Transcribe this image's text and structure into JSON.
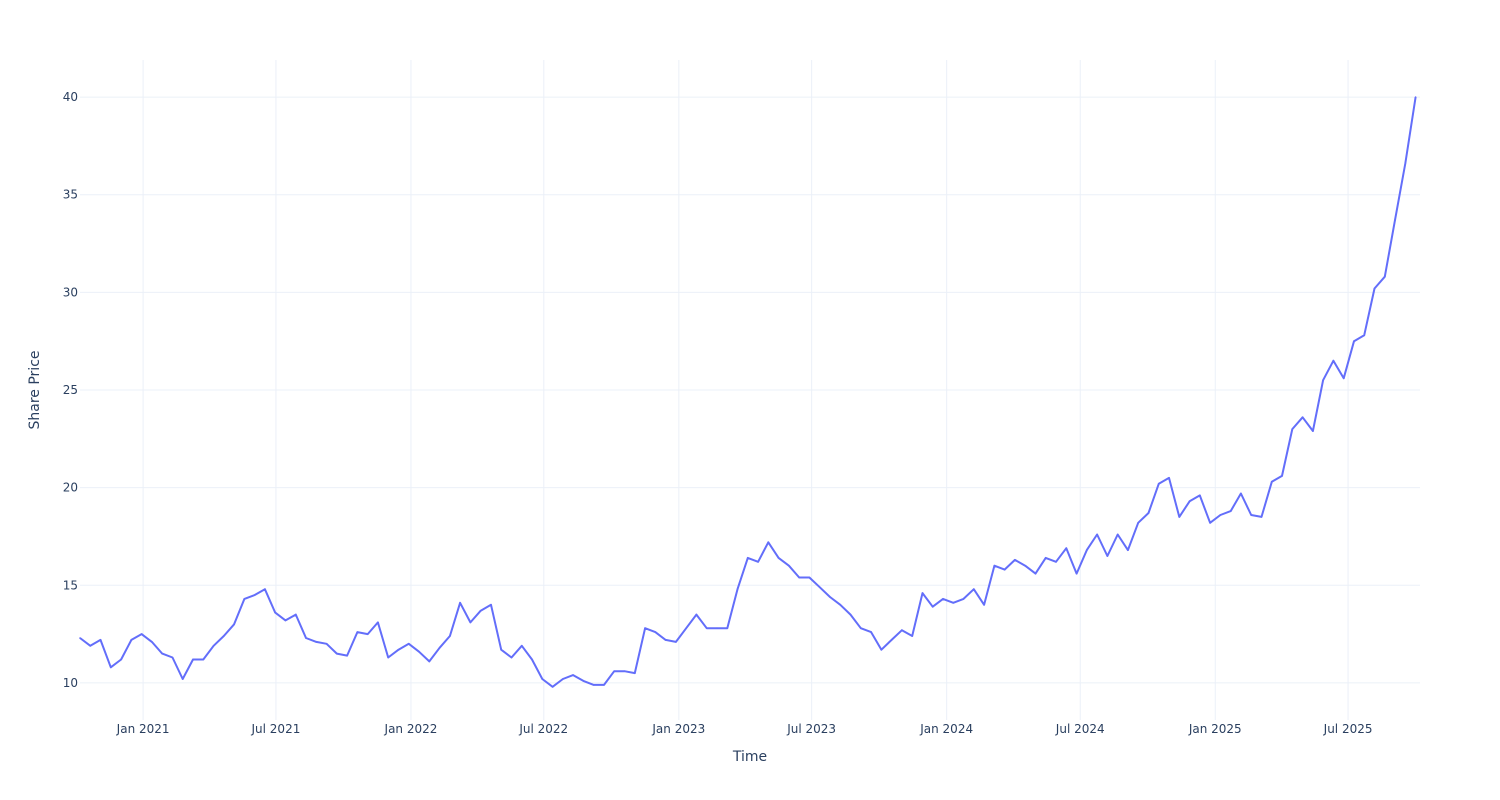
{
  "chart_data": {
    "type": "line",
    "title": "",
    "xlabel": "Time",
    "ylabel": "Share Price",
    "xlim": [
      "2020-10-07",
      "2025-10-07"
    ],
    "ylim": [
      8.1,
      41.9
    ],
    "grid": true,
    "legend": "none",
    "line_color": "#636efa",
    "grid_color": "#ebf0f8",
    "text_color": "#2a3f5f",
    "y_ticks": [
      10,
      15,
      20,
      25,
      30,
      35,
      40
    ],
    "x_ticks": [
      {
        "date": "2021-01-01",
        "label": "Jan 2021"
      },
      {
        "date": "2021-07-01",
        "label": "Jul 2021"
      },
      {
        "date": "2022-01-01",
        "label": "Jan 2022"
      },
      {
        "date": "2022-07-01",
        "label": "Jul 2022"
      },
      {
        "date": "2023-01-01",
        "label": "Jan 2023"
      },
      {
        "date": "2023-07-01",
        "label": "Jul 2023"
      },
      {
        "date": "2024-01-01",
        "label": "Jan 2024"
      },
      {
        "date": "2024-07-01",
        "label": "Jul 2024"
      },
      {
        "date": "2025-01-01",
        "label": "Jan 2025"
      },
      {
        "date": "2025-07-01",
        "label": "Jul 2025"
      }
    ],
    "series": [
      {
        "name": "Share Price",
        "x": [
          "2020-10-07",
          "2020-10-21",
          "2020-11-04",
          "2020-11-18",
          "2020-12-02",
          "2020-12-16",
          "2020-12-30",
          "2021-01-13",
          "2021-01-27",
          "2021-02-10",
          "2021-02-24",
          "2021-03-10",
          "2021-03-24",
          "2021-04-07",
          "2021-04-21",
          "2021-05-05",
          "2021-05-19",
          "2021-06-02",
          "2021-06-16",
          "2021-06-30",
          "2021-07-14",
          "2021-07-28",
          "2021-08-11",
          "2021-08-25",
          "2021-09-08",
          "2021-09-22",
          "2021-10-06",
          "2021-10-20",
          "2021-11-03",
          "2021-11-17",
          "2021-12-01",
          "2021-12-15",
          "2021-12-29",
          "2022-01-12",
          "2022-01-26",
          "2022-02-09",
          "2022-02-23",
          "2022-03-09",
          "2022-03-23",
          "2022-04-06",
          "2022-04-20",
          "2022-05-04",
          "2022-05-18",
          "2022-06-01",
          "2022-06-15",
          "2022-06-29",
          "2022-07-13",
          "2022-07-27",
          "2022-08-10",
          "2022-08-24",
          "2022-09-07",
          "2022-09-21",
          "2022-10-05",
          "2022-10-19",
          "2022-11-02",
          "2022-11-16",
          "2022-11-30",
          "2022-12-14",
          "2022-12-28",
          "2023-01-11",
          "2023-01-25",
          "2023-02-08",
          "2023-02-22",
          "2023-03-08",
          "2023-03-22",
          "2023-04-05",
          "2023-04-19",
          "2023-05-03",
          "2023-05-17",
          "2023-05-31",
          "2023-06-14",
          "2023-06-28",
          "2023-07-12",
          "2023-07-26",
          "2023-08-09",
          "2023-08-23",
          "2023-09-06",
          "2023-09-20",
          "2023-10-04",
          "2023-10-18",
          "2023-11-01",
          "2023-11-15",
          "2023-11-29",
          "2023-12-13",
          "2023-12-27",
          "2024-01-10",
          "2024-01-24",
          "2024-02-07",
          "2024-02-21",
          "2024-03-06",
          "2024-03-20",
          "2024-04-03",
          "2024-04-17",
          "2024-05-01",
          "2024-05-15",
          "2024-05-29",
          "2024-06-12",
          "2024-06-26",
          "2024-07-10",
          "2024-07-24",
          "2024-08-07",
          "2024-08-21",
          "2024-09-04",
          "2024-09-18",
          "2024-10-02",
          "2024-10-16",
          "2024-10-30",
          "2024-11-13",
          "2024-11-27",
          "2024-12-11",
          "2024-12-25",
          "2025-01-08",
          "2025-01-22",
          "2025-02-05",
          "2025-02-19",
          "2025-03-05",
          "2025-03-19",
          "2025-04-02",
          "2025-04-16",
          "2025-04-30",
          "2025-05-14",
          "2025-05-28",
          "2025-06-11",
          "2025-06-25",
          "2025-07-09",
          "2025-07-23",
          "2025-08-06",
          "2025-08-20",
          "2025-09-03",
          "2025-09-17",
          "2025-10-01"
        ],
        "y": [
          12.3,
          11.9,
          12.2,
          10.8,
          11.2,
          12.2,
          12.5,
          12.1,
          11.5,
          11.3,
          10.2,
          11.2,
          11.2,
          11.9,
          12.4,
          13.0,
          14.3,
          14.5,
          14.8,
          13.6,
          13.2,
          13.5,
          12.3,
          12.1,
          12.0,
          11.5,
          11.4,
          12.6,
          12.5,
          13.1,
          11.3,
          11.7,
          12.0,
          11.6,
          11.1,
          11.8,
          12.4,
          14.1,
          13.1,
          13.7,
          14.0,
          11.7,
          11.3,
          11.9,
          11.2,
          10.2,
          9.8,
          10.2,
          10.4,
          10.1,
          9.9,
          9.9,
          10.6,
          10.6,
          10.5,
          12.8,
          12.6,
          12.2,
          12.1,
          12.8,
          13.5,
          12.8,
          12.8,
          12.8,
          14.8,
          16.4,
          16.2,
          17.2,
          16.4,
          16.0,
          15.4,
          15.4,
          14.9,
          14.4,
          14.0,
          13.5,
          12.8,
          12.6,
          11.7,
          12.2,
          12.7,
          12.4,
          14.6,
          13.9,
          14.3,
          14.1,
          14.3,
          14.8,
          14.0,
          16.0,
          15.8,
          16.3,
          16.0,
          15.6,
          16.4,
          16.2,
          16.9,
          15.6,
          16.8,
          17.6,
          16.5,
          17.6,
          16.8,
          18.2,
          18.7,
          20.2,
          20.5,
          18.5,
          19.3,
          19.6,
          18.2,
          18.6,
          18.8,
          19.7,
          18.6,
          18.5,
          20.3,
          20.6,
          23.0,
          23.6,
          22.9,
          25.5,
          26.5,
          25.6,
          27.5,
          27.8,
          30.2,
          30.8,
          33.7,
          36.6,
          40.0
        ]
      }
    ]
  }
}
